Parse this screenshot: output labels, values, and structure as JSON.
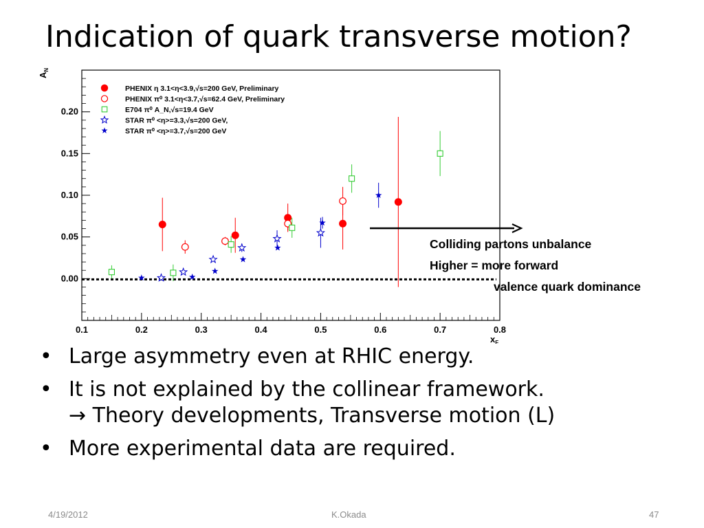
{
  "slide": {
    "title": "Indication of quark transverse motion?",
    "bullets": [
      {
        "text": "Large asymmetry even at RHIC energy.",
        "sub": ""
      },
      {
        "text": "It is not explained by the collinear framework.",
        "sub": "→ Theory developments, Transverse motion (L)"
      },
      {
        "text": "More experimental data are required.",
        "sub": ""
      }
    ],
    "bullet_char": "•",
    "footer": {
      "date": "4/19/2012",
      "author": "K.Okada",
      "page": "47"
    }
  },
  "annotation": {
    "line1": "Colliding partons unbalance",
    "line2": "Higher = more forward",
    "line3": "valence quark dominance"
  },
  "chart_data": {
    "type": "scatter",
    "xlabel": "x_F",
    "ylabel": "A_N",
    "xlim": [
      0.1,
      0.8
    ],
    "ylim": [
      -0.05,
      0.25
    ],
    "x_ticks": [
      "0.1",
      "0.2",
      "0.3",
      "0.4",
      "0.5",
      "0.6",
      "0.7",
      "0.8"
    ],
    "y_ticks": [
      "0.00",
      "0.05",
      "0.10",
      "0.15",
      "0.20"
    ],
    "legend_position": "top-left",
    "zero_line": "dotted",
    "series": [
      {
        "name": "PHENIX η 3.1<η<3.9,√s=200 GeV, Preliminary",
        "color": "#ff0000",
        "marker": "filled-circle",
        "points": [
          {
            "x": 0.235,
            "y": 0.065,
            "err": 0.032
          },
          {
            "x": 0.357,
            "y": 0.052,
            "err": 0.021
          },
          {
            "x": 0.445,
            "y": 0.073,
            "err": 0.017
          },
          {
            "x": 0.537,
            "y": 0.066,
            "err": 0.031
          },
          {
            "x": 0.63,
            "y": 0.092,
            "err": 0.102
          }
        ]
      },
      {
        "name": "PHENIX π⁰ 3.1<η<3.7,√s=62.4 GeV, Preliminary",
        "color": "#ff0000",
        "marker": "open-circle",
        "points": [
          {
            "x": 0.273,
            "y": 0.038,
            "err": 0.008
          },
          {
            "x": 0.34,
            "y": 0.045,
            "err": 0.005
          },
          {
            "x": 0.445,
            "y": 0.066,
            "err": 0.008
          },
          {
            "x": 0.537,
            "y": 0.093,
            "err": 0.017
          }
        ]
      },
      {
        "name": "E704 π⁰ A_N,√s=19.4 GeV",
        "color": "#33cc33",
        "marker": "open-square",
        "points": [
          {
            "x": 0.15,
            "y": 0.008,
            "err": 0.008
          },
          {
            "x": 0.253,
            "y": 0.007,
            "err": 0.01
          },
          {
            "x": 0.35,
            "y": 0.041,
            "err": 0.01
          },
          {
            "x": 0.452,
            "y": 0.061,
            "err": 0.012
          },
          {
            "x": 0.552,
            "y": 0.12,
            "err": 0.017
          },
          {
            "x": 0.7,
            "y": 0.15,
            "err": 0.027
          }
        ]
      },
      {
        "name": "STAR π⁰ <η>=3.3,√s=200 GeV,",
        "color": "#0000cc",
        "marker": "open-star",
        "points": [
          {
            "x": 0.233,
            "y": 0.001,
            "err": 0.0
          },
          {
            "x": 0.27,
            "y": 0.008,
            "err": 0.0
          },
          {
            "x": 0.32,
            "y": 0.023,
            "err": 0.0
          },
          {
            "x": 0.368,
            "y": 0.037,
            "err": 0.005
          },
          {
            "x": 0.427,
            "y": 0.048,
            "err": 0.01
          },
          {
            "x": 0.5,
            "y": 0.055,
            "err": 0.018
          }
        ]
      },
      {
        "name": "STAR π⁰ <η>=3.7,√s=200 GeV",
        "color": "#0000cc",
        "marker": "filled-star",
        "points": [
          {
            "x": 0.2,
            "y": 0.001,
            "err": 0.0
          },
          {
            "x": 0.285,
            "y": 0.002,
            "err": 0.0
          },
          {
            "x": 0.323,
            "y": 0.009,
            "err": 0.0
          },
          {
            "x": 0.37,
            "y": 0.023,
            "err": 0.0
          },
          {
            "x": 0.428,
            "y": 0.037,
            "err": 0.0
          },
          {
            "x": 0.503,
            "y": 0.067,
            "err": 0.007
          },
          {
            "x": 0.597,
            "y": 0.1,
            "err": 0.015
          }
        ]
      }
    ]
  }
}
